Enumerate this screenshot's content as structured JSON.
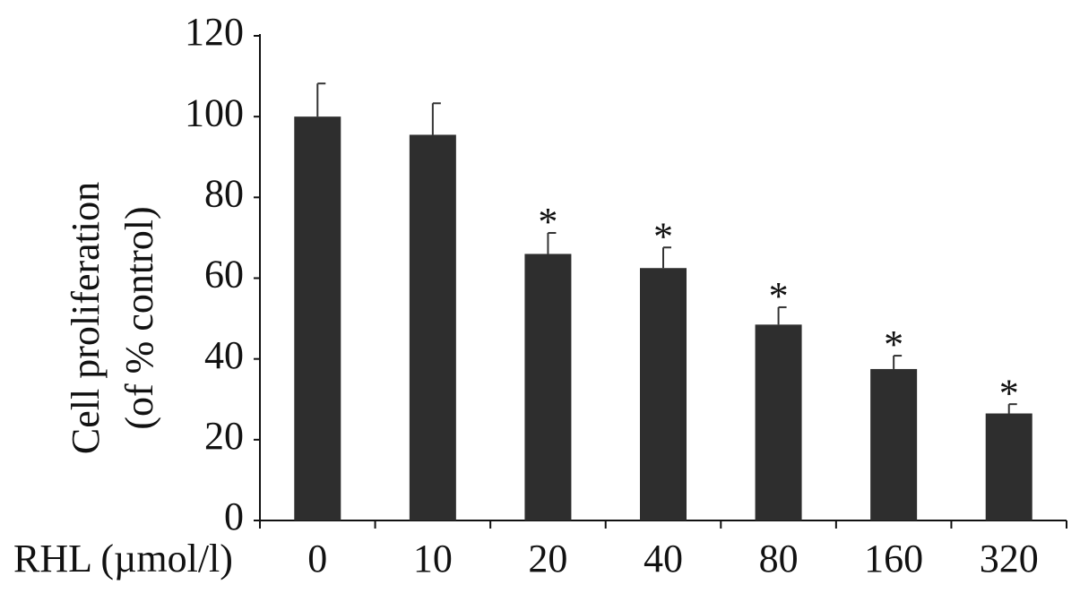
{
  "chart_data": {
    "type": "bar",
    "ylabel": [
      "Cell proliferation",
      "(of % control)"
    ],
    "xlabel": "RHL (µmol/l)",
    "categories": [
      "0",
      "10",
      "20",
      "40",
      "80",
      "160",
      "320"
    ],
    "values": [
      100,
      95.5,
      66,
      62.5,
      48.5,
      37.5,
      26.5
    ],
    "errors": [
      8.2,
      7.8,
      5.2,
      5.1,
      4.3,
      3.3,
      2.3
    ],
    "significance": [
      null,
      null,
      "*",
      "*",
      "*",
      "*",
      "*"
    ],
    "color": "#2e2e2e",
    "ylim": [
      0,
      120
    ],
    "yticks": [
      0,
      20,
      40,
      60,
      80,
      100,
      120
    ]
  }
}
